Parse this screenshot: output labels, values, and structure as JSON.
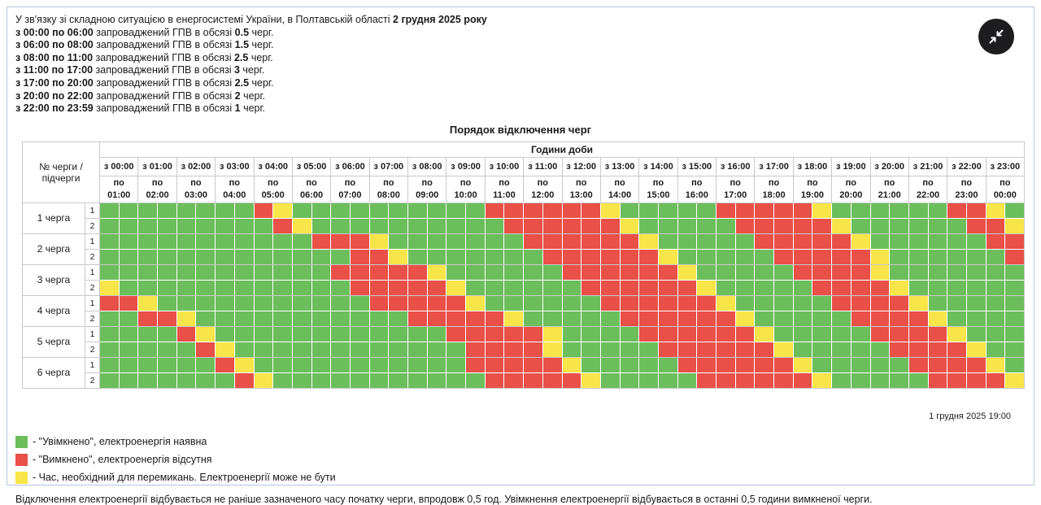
{
  "colors": {
    "on": "#6cbe5c",
    "off": "#e85048",
    "switch": "#f7e549",
    "button_bg": "#1d1d1f"
  },
  "header": {
    "intro_prefix": "У зв'язку зі складною ситуацією в енергосистемі України, в Полтавській області",
    "intro_date": "2 грудня 2025 року",
    "schedule_lines": [
      {
        "time": "з 00:00 по 06:00",
        "middle": "запроваджений ГПВ в обсязі",
        "amount": "0.5",
        "suffix": "черг."
      },
      {
        "time": "з 06:00 по 08:00",
        "middle": "запроваджений ГПВ в обсязі",
        "amount": "1.5",
        "suffix": "черг."
      },
      {
        "time": "з 08:00 по 11:00",
        "middle": "запроваджений ГПВ в обсязі",
        "amount": "2.5",
        "suffix": "черг."
      },
      {
        "time": "з 11:00 по 17:00",
        "middle": "запроваджений ГПВ в обсязі",
        "amount": "3",
        "suffix": "черг."
      },
      {
        "time": "з 17:00 по 20:00",
        "middle": "запроваджений ГПВ в обсязі",
        "amount": "2.5",
        "suffix": "черг."
      },
      {
        "time": "з 20:00 по 22:00",
        "middle": "запроваджений ГПВ в обсязі",
        "amount": "2",
        "suffix": "черг."
      },
      {
        "time": "з 22:00 по 23:59",
        "middle": "запроваджений ГПВ в обсязі",
        "amount": "1",
        "suffix": "черг."
      }
    ]
  },
  "collapse_button": {
    "icon": "collapse-arrows-icon"
  },
  "table": {
    "title": "Порядок відключення черг",
    "corner_header": "№ черги / підчерги",
    "hours_header": "Години доби",
    "columns": [
      {
        "from": "з 00:00",
        "to_word": "по",
        "to_hour": "01:00"
      },
      {
        "from": "з 01:00",
        "to_word": "по",
        "to_hour": "02:00"
      },
      {
        "from": "з 02:00",
        "to_word": "по",
        "to_hour": "03:00"
      },
      {
        "from": "з 03:00",
        "to_word": "по",
        "to_hour": "04:00"
      },
      {
        "from": "з 04:00",
        "to_word": "по",
        "to_hour": "05:00"
      },
      {
        "from": "з 05:00",
        "to_word": "по",
        "to_hour": "06:00"
      },
      {
        "from": "з 06:00",
        "to_word": "по",
        "to_hour": "07:00"
      },
      {
        "from": "з 07:00",
        "to_word": "по",
        "to_hour": "08:00"
      },
      {
        "from": "з 08:00",
        "to_word": "по",
        "to_hour": "09:00"
      },
      {
        "from": "з 09:00",
        "to_word": "по",
        "to_hour": "10:00"
      },
      {
        "from": "з 10:00",
        "to_word": "по",
        "to_hour": "11:00"
      },
      {
        "from": "з 11:00",
        "to_word": "по",
        "to_hour": "12:00"
      },
      {
        "from": "з 12:00",
        "to_word": "по",
        "to_hour": "13:00"
      },
      {
        "from": "з 13:00",
        "to_word": "по",
        "to_hour": "14:00"
      },
      {
        "from": "з 14:00",
        "to_word": "по",
        "to_hour": "15:00"
      },
      {
        "from": "з 15:00",
        "to_word": "по",
        "to_hour": "16:00"
      },
      {
        "from": "з 16:00",
        "to_word": "по",
        "to_hour": "17:00"
      },
      {
        "from": "з 17:00",
        "to_word": "по",
        "to_hour": "18:00"
      },
      {
        "from": "з 18:00",
        "to_word": "по",
        "to_hour": "19:00"
      },
      {
        "from": "з 19:00",
        "to_word": "по",
        "to_hour": "20:00"
      },
      {
        "from": "з 20:00",
        "to_word": "по",
        "to_hour": "21:00"
      },
      {
        "from": "з 21:00",
        "to_word": "по",
        "to_hour": "22:00"
      },
      {
        "from": "з 22:00",
        "to_word": "по",
        "to_hour": "23:00"
      },
      {
        "from": "з 23:00",
        "to_word": "по",
        "to_hour": "00:00"
      }
    ],
    "queues": [
      {
        "label": "1 черга",
        "rows": [
          {
            "sub": "1",
            "cells": "GGGGGGGGRYGGGGGGGGGGRRRRRRYGGGGGRRRRRYGGGGGGRRYG"
          },
          {
            "sub": "2",
            "cells": "GGGGGGGGGRYGGGGGGGGGGRRRRRRYGGGGGRRRRRYGGGGGGRRY"
          }
        ]
      },
      {
        "label": "2 черга",
        "rows": [
          {
            "sub": "1",
            "cells": "GGGGGGGGGGGRRRYGGGGGGGRRRRRRYGGGGGRRRRRYGGGGGGRR"
          },
          {
            "sub": "2",
            "cells": "GGGGGGGGGGGGGRRYGGGGGGGRRRRRRYGGGGGRRRRRYGGGGGGR"
          }
        ]
      },
      {
        "label": "3 черга",
        "rows": [
          {
            "sub": "1",
            "cells": "GGGGGGGGGGGGRRRRRYGGGGGGRRRRRRYGGGGGRRRRYGGGGGGG"
          },
          {
            "sub": "2",
            "cells": "YGGGGGGGGGGGGRRRRRYGGGGGGRRRRRRYGGGGGRRRRYGGGGGG"
          }
        ]
      },
      {
        "label": "4 черга",
        "rows": [
          {
            "sub": "1",
            "cells": "RRYGGGGGGGGGGGRRRRRYGGGGGGRRRRRRYGGGGGRRRRYGGGGG"
          },
          {
            "sub": "2",
            "cells": "GGRRYGGGGGGGGGGGRRRRRYGGGGGRRRRRRYGGGGGRRRRYGGGG"
          }
        ]
      },
      {
        "label": "5 черга",
        "rows": [
          {
            "sub": "1",
            "cells": "GGGGRYGGGGGGGGGGGGRRRRRYGGGGRRRRRRYGGGGGRRRRYGGG"
          },
          {
            "sub": "2",
            "cells": "GGGGGRYGGGGGGGGGGGGRRRRYGGGGGRRRRRRYGGGGGRRRRYGG"
          }
        ]
      },
      {
        "label": "6 черга",
        "rows": [
          {
            "sub": "1",
            "cells": "GGGGGGRYGGGGGGGGGGGRRRRRYGGGGGRRRRRRYGGGGGRRRRYG"
          },
          {
            "sub": "2",
            "cells": "GGGGGGGRYGGGGGGGGGGGRRRRRYGGGGGRRRRRRYGGGGGRRRRY"
          }
        ]
      }
    ],
    "timestamp": "1 грудня 2025 19:00"
  },
  "legend": [
    {
      "type": "on",
      "text": "- \"Увімкнено\", електроенергія наявна"
    },
    {
      "type": "off",
      "text": "- \"Вимкнено\", електроенергія відсутня"
    },
    {
      "type": "switch",
      "text": "- Час, необхідний для перемикань. Електроенергії може не бути"
    }
  ],
  "footnote": "Відключення електроенергії відбувається не раніше зазначеного часу початку черги, впродовж 0,5 год. Увімкнення електроенергії відбувається в останні 0,5 години вимкненої черги."
}
